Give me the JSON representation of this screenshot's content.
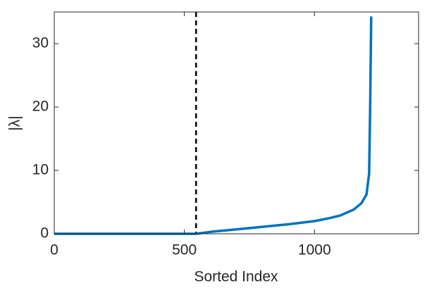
{
  "chart_data": {
    "type": "line",
    "x_label": "Sorted Index",
    "y_label": "|λ|",
    "x": [
      0,
      545,
      600,
      700,
      800,
      900,
      1000,
      1050,
      1100,
      1150,
      1180,
      1200,
      1210,
      1214,
      1218
    ],
    "series": [
      {
        "color": "#0072bd",
        "values": [
          0,
          0,
          0.3,
          0.7,
          1.1,
          1.5,
          2.0,
          2.4,
          2.9,
          3.8,
          4.8,
          6.2,
          9.5,
          20,
          34.3
        ]
      }
    ],
    "xlim": [
      0,
      1400
    ],
    "ylim": [
      0,
      35
    ],
    "xticks": [
      0,
      500,
      1000
    ],
    "yticks": [
      0,
      10,
      20,
      30
    ],
    "vline": {
      "x": 545,
      "color": "#000000",
      "style": "dashed"
    },
    "grid": false
  }
}
